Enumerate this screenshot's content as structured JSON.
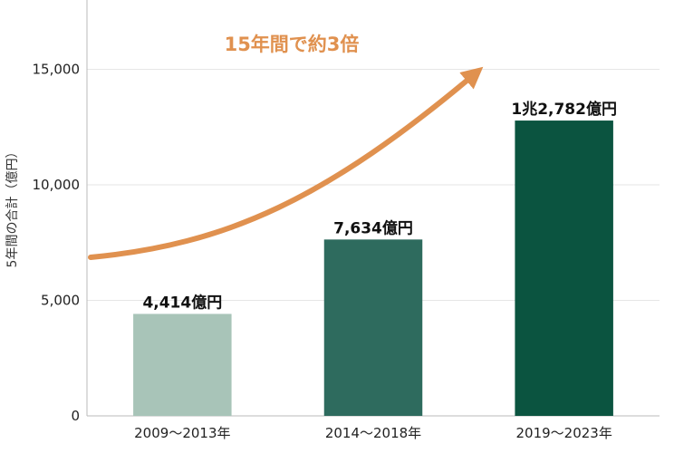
{
  "chart_data": {
    "type": "bar",
    "categories": [
      "2009〜2013年",
      "2014〜2018年",
      "2019〜2023年"
    ],
    "values": [
      4414,
      7634,
      12782
    ],
    "data_labels": [
      "4,414億円",
      "7,634億円",
      "1兆2,782億円"
    ],
    "bar_colors": [
      "#a8c4b8",
      "#2e6b5e",
      "#0b5440"
    ],
    "ylabel": "5年間の合計（億円）",
    "xlabel": "",
    "ylim": [
      0,
      18000
    ],
    "yticks": [
      0,
      5000,
      10000,
      15000
    ],
    "ytick_labels": [
      "0",
      "5,000",
      "10,000",
      "15,000"
    ],
    "grid": true,
    "annotation": {
      "text": "15年間で約3倍",
      "color": "#e0914f"
    }
  }
}
